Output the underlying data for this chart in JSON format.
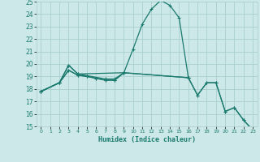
{
  "xlabel": "Humidex (Indice chaleur)",
  "xlim": [
    -0.5,
    23.5
  ],
  "ylim": [
    15,
    25
  ],
  "xtick_labels": [
    "0",
    "1",
    "2",
    "3",
    "4",
    "5",
    "6",
    "7",
    "8",
    "9",
    "10",
    "11",
    "12",
    "13",
    "14",
    "15",
    "16",
    "17",
    "18",
    "19",
    "20",
    "21",
    "22",
    "23"
  ],
  "xtick_positions": [
    0,
    1,
    2,
    3,
    4,
    5,
    6,
    7,
    8,
    9,
    10,
    11,
    12,
    13,
    14,
    15,
    16,
    17,
    18,
    19,
    20,
    21,
    22,
    23
  ],
  "ytick_positions": [
    15,
    16,
    17,
    18,
    19,
    20,
    21,
    22,
    23,
    24,
    25
  ],
  "background_color": "#cce8e8",
  "grid_color": "#aacfcf",
  "line_color": "#1a7a6e",
  "line1_x": [
    0,
    2,
    3,
    4,
    7,
    8,
    9,
    10,
    11,
    12,
    13,
    14,
    15,
    16
  ],
  "line1_y": [
    17.8,
    18.5,
    19.9,
    19.2,
    18.8,
    18.8,
    19.3,
    21.2,
    23.2,
    24.4,
    25.1,
    24.7,
    23.7,
    18.9
  ],
  "line2_x": [
    0,
    2,
    3,
    4,
    5,
    6,
    7,
    8,
    9,
    16,
    17,
    18,
    19,
    20,
    21,
    22,
    23
  ],
  "line2_y": [
    17.8,
    18.5,
    19.5,
    19.1,
    19.0,
    18.85,
    18.7,
    18.7,
    19.3,
    18.9,
    17.5,
    18.5,
    18.5,
    16.2,
    16.5,
    15.5,
    14.7
  ],
  "line3_x": [
    0,
    2,
    3,
    4,
    9,
    16,
    17,
    18,
    19,
    20,
    21,
    22,
    23
  ],
  "line3_y": [
    17.8,
    18.5,
    19.9,
    19.2,
    19.3,
    18.9,
    17.5,
    18.5,
    18.5,
    16.2,
    16.5,
    15.5,
    14.7
  ],
  "line4_x": [
    0,
    2,
    3,
    4,
    5,
    6,
    7,
    8,
    9
  ],
  "line4_y": [
    17.8,
    18.5,
    19.5,
    19.1,
    19.0,
    18.85,
    18.7,
    18.7,
    19.3
  ]
}
